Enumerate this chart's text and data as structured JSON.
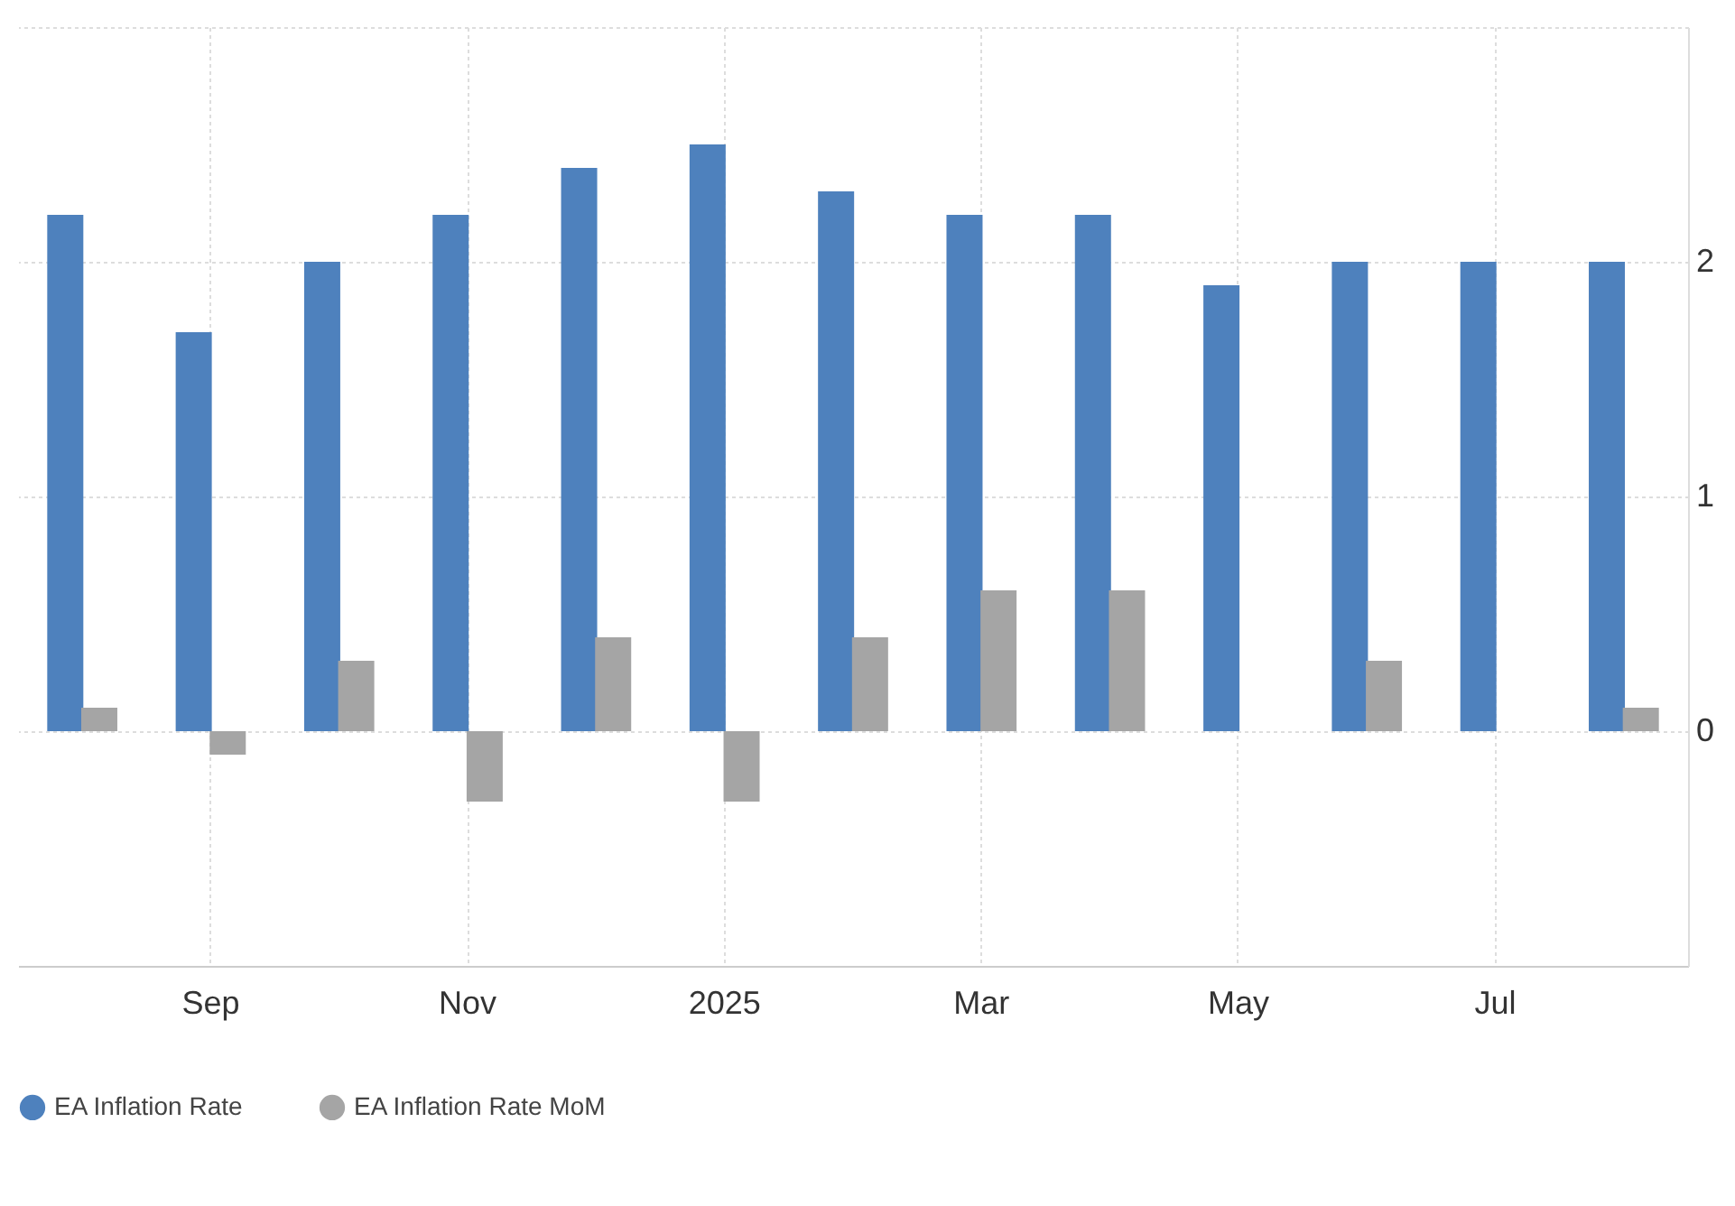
{
  "chart_data": {
    "type": "bar",
    "categories": [
      null,
      "Sep",
      null,
      "Nov",
      null,
      "2025",
      null,
      "Mar",
      null,
      "May",
      null,
      "Jul",
      null
    ],
    "series": [
      {
        "name": "EA Inflation Rate",
        "color": "#4e81bd",
        "values": [
          2.2,
          1.7,
          2.0,
          2.2,
          2.4,
          2.5,
          2.3,
          2.2,
          2.2,
          1.9,
          2.0,
          2.0,
          2.0
        ]
      },
      {
        "name": "EA Inflation Rate MoM",
        "color": "#a5a5a5",
        "values": [
          0.1,
          -0.1,
          0.3,
          -0.3,
          0.4,
          -0.3,
          0.4,
          0.6,
          0.6,
          0.0,
          0.3,
          0.0,
          0.1
        ]
      }
    ],
    "ylim": [
      -1,
      3
    ],
    "yticks": [
      {
        "value": -1,
        "label": null
      },
      0,
      1,
      2,
      {
        "value": 3,
        "label": null
      }
    ],
    "grid": true,
    "legend": "bottom"
  }
}
